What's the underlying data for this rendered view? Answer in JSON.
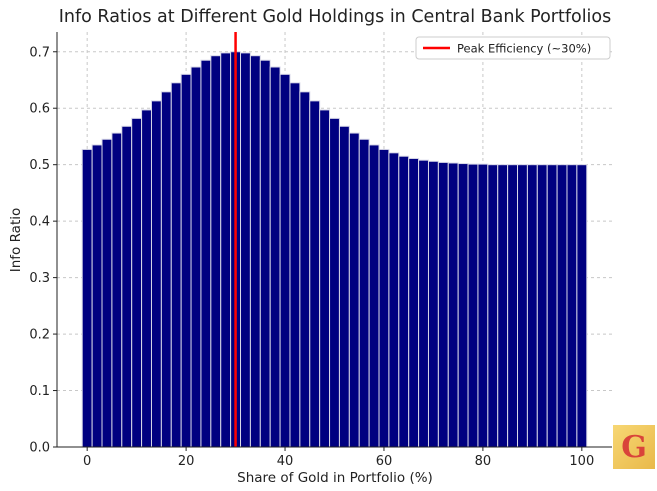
{
  "chart_data": {
    "type": "bar",
    "title": "Info Ratios at Different Gold Holdings in Central Bank Portfolios",
    "xlabel": "Share of Gold in Portfolio (%)",
    "ylabel": "Info Ratio",
    "x": [
      0,
      2,
      4,
      6,
      8,
      10,
      12,
      14,
      16,
      18,
      20,
      22,
      24,
      26,
      28,
      30,
      32,
      34,
      36,
      38,
      40,
      42,
      44,
      46,
      48,
      50,
      52,
      54,
      56,
      58,
      60,
      62,
      64,
      66,
      68,
      70,
      72,
      74,
      76,
      78,
      80,
      82,
      84,
      86,
      88,
      90,
      92,
      94,
      96,
      98,
      100
    ],
    "values": [
      0.527,
      0.535,
      0.545,
      0.556,
      0.568,
      0.582,
      0.597,
      0.613,
      0.629,
      0.645,
      0.66,
      0.673,
      0.685,
      0.693,
      0.698,
      0.7,
      0.698,
      0.693,
      0.685,
      0.673,
      0.66,
      0.645,
      0.629,
      0.613,
      0.597,
      0.582,
      0.568,
      0.556,
      0.545,
      0.535,
      0.527,
      0.521,
      0.515,
      0.511,
      0.508,
      0.506,
      0.504,
      0.503,
      0.502,
      0.501,
      0.501,
      0.5,
      0.5,
      0.5,
      0.5,
      0.5,
      0.5,
      0.5,
      0.5,
      0.5,
      0.5
    ],
    "bar_color": "#000080",
    "xlim": [
      -6.1,
      106.1
    ],
    "ylim": [
      0,
      0.735
    ],
    "xticks": [
      "0",
      "20",
      "40",
      "60",
      "80",
      "100"
    ],
    "yticks": [
      "0.0",
      "0.1",
      "0.2",
      "0.3",
      "0.4",
      "0.5",
      "0.6",
      "0.7"
    ],
    "grid": true,
    "vline": {
      "x": 30,
      "color": "#ff0000",
      "label": "Peak Efficiency (~30%)"
    },
    "legend_position": "top-right"
  },
  "logo": {
    "text": "G"
  }
}
